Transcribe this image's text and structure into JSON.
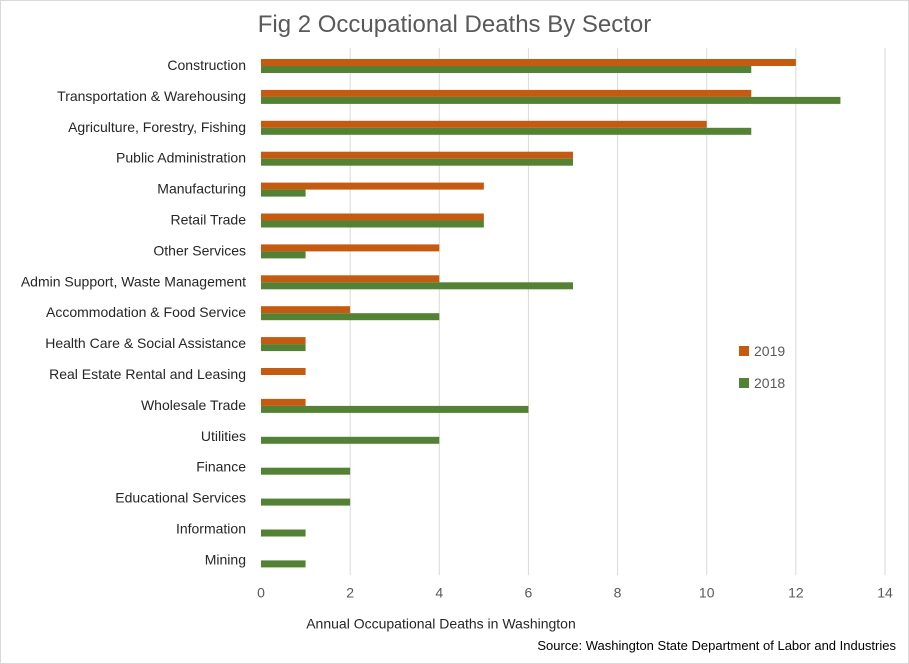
{
  "colors": {
    "series_2019": "#c55a11",
    "series_2018": "#548235",
    "grid": "#d9d9d9",
    "text": "#595959"
  },
  "source": "Source: Washington State Department of Labor and Industries",
  "chart_data": {
    "type": "bar",
    "orientation": "horizontal",
    "title": "Fig 2 Occupational Deaths By Sector",
    "xlabel": "Annual Occupational Deaths in Washington",
    "ylabel": "",
    "xlim": [
      0,
      14
    ],
    "xticks": [
      0,
      2,
      4,
      6,
      8,
      10,
      12,
      14
    ],
    "grid": true,
    "legend_position": "right",
    "categories": [
      "Construction",
      "Transportation & Warehousing",
      "Agriculture, Forestry, Fishing",
      "Public Administration",
      "Manufacturing",
      "Retail Trade",
      "Other Services",
      "Admin Support, Waste Management",
      "Accommodation & Food Service",
      "Health Care & Social Assistance",
      "Real Estate Rental and Leasing",
      "Wholesale Trade",
      "Utilities",
      "Finance",
      "Educational Services",
      "Information",
      "Mining"
    ],
    "series": [
      {
        "name": "2019",
        "values": [
          12,
          11,
          10,
          7,
          5,
          5,
          4,
          4,
          2,
          1,
          1,
          1,
          0,
          0,
          0,
          0,
          0
        ]
      },
      {
        "name": "2018",
        "values": [
          11,
          13,
          11,
          7,
          1,
          5,
          1,
          7,
          4,
          1,
          0,
          6,
          4,
          2,
          2,
          1,
          1
        ]
      }
    ]
  }
}
